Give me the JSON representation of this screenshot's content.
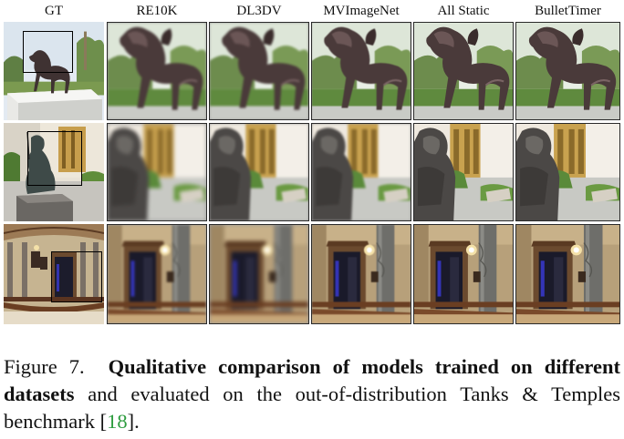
{
  "columns": [
    {
      "key": "gt",
      "label": "GT"
    },
    {
      "key": "re10k",
      "label": "RE10K"
    },
    {
      "key": "dl3dv",
      "label": "DL3DV"
    },
    {
      "key": "mvimagenet",
      "label": "MVImageNet"
    },
    {
      "key": "all_static",
      "label": "All Static"
    },
    {
      "key": "bullettimer",
      "label": "BulletTimer"
    }
  ],
  "rows": [
    {
      "scene": "horse-statue"
    },
    {
      "scene": "seated-statue"
    },
    {
      "scene": "rotunda-doorway"
    }
  ],
  "caption": {
    "prefix": "Figure 7.",
    "bold": "Qualitative comparison of models trained on different datasets",
    "text": "and evaluated on the out-of-distribution Tanks & Temples benchmark",
    "cite_open": "[",
    "cite": "18",
    "cite_close": "]."
  },
  "colors": {
    "citation": "#2e9c3f",
    "crop_box": "#000000"
  }
}
